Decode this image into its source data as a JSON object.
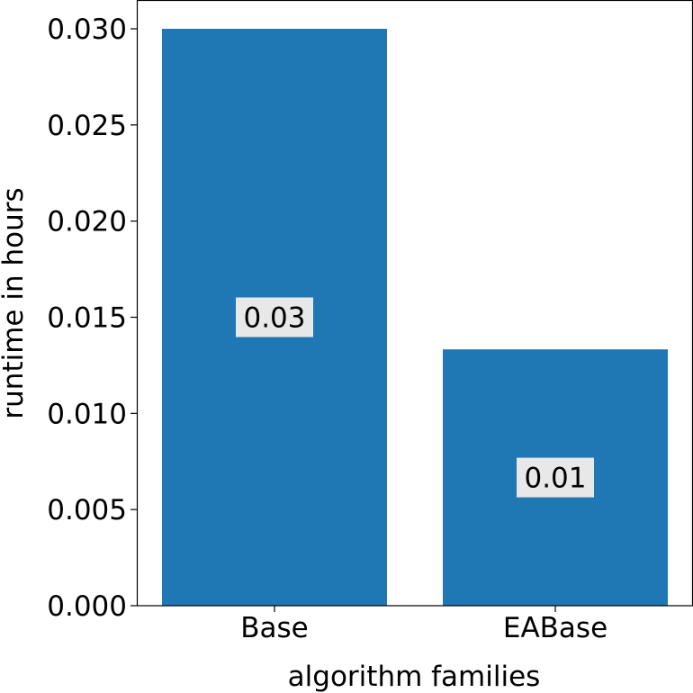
{
  "chart_data": {
    "type": "bar",
    "categories": [
      "Base",
      "EABase"
    ],
    "values": [
      0.03,
      0.01333
    ],
    "data_labels": [
      "0.03",
      "0.01"
    ],
    "title": "",
    "xlabel": "algorithm families",
    "ylabel": "runtime in hours",
    "ylim": [
      0,
      0.0315
    ],
    "yticks": [
      0.0,
      0.005,
      0.01,
      0.015,
      0.02,
      0.025,
      0.03
    ],
    "ytick_labels": [
      "0.000",
      "0.005",
      "0.010",
      "0.015",
      "0.020",
      "0.025",
      "0.030"
    ],
    "grid": false,
    "bar_color": "#1f77b4",
    "label_box_color": "#e8e8e8"
  }
}
